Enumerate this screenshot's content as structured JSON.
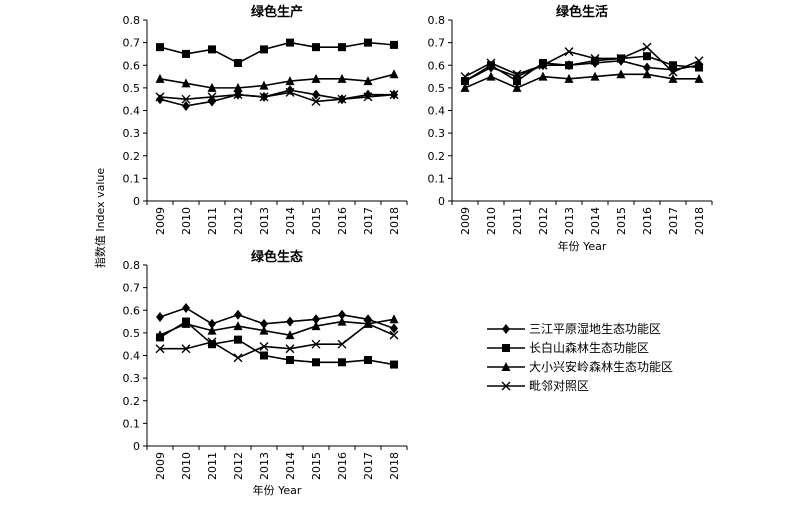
{
  "shared": {
    "ylabel": "指数值 Index value",
    "xlabel": "年份 Year"
  },
  "legend": [
    {
      "label": "三江平原湿地生态功能区",
      "marker": "diamond"
    },
    {
      "label": "长白山森林生态功能区",
      "marker": "square"
    },
    {
      "label": "大小兴安岭森林生态功能区",
      "marker": "triangle"
    },
    {
      "label": "毗邻对照区",
      "marker": "cross"
    }
  ],
  "chart_data": [
    {
      "type": "line",
      "title": "绿色生产",
      "xlabel": "",
      "categories": [
        "2009",
        "2010",
        "2011",
        "2012",
        "2013",
        "2014",
        "2015",
        "2016",
        "2017",
        "2018"
      ],
      "ylim": [
        0,
        0.8
      ],
      "yticks": [
        "0",
        "0.1",
        "0.2",
        "0.3",
        "0.4",
        "0.5",
        "0.6",
        "0.7",
        "0.8"
      ],
      "series": [
        {
          "name": "三江平原湿地生态功能区",
          "marker": "diamond",
          "values": [
            0.45,
            0.42,
            0.44,
            0.47,
            0.46,
            0.49,
            0.47,
            0.45,
            0.47,
            0.47
          ]
        },
        {
          "name": "长白山森林生态功能区",
          "marker": "square",
          "values": [
            0.68,
            0.65,
            0.67,
            0.61,
            0.67,
            0.7,
            0.68,
            0.68,
            0.7,
            0.69
          ]
        },
        {
          "name": "大小兴安岭森林生态功能区",
          "marker": "triangle",
          "values": [
            0.54,
            0.52,
            0.5,
            0.5,
            0.51,
            0.53,
            0.54,
            0.54,
            0.53,
            0.56
          ]
        },
        {
          "name": "毗邻对照区",
          "marker": "cross",
          "values": [
            0.46,
            0.45,
            0.46,
            0.47,
            0.46,
            0.48,
            0.44,
            0.45,
            0.46,
            0.47
          ]
        }
      ]
    },
    {
      "type": "line",
      "title": "绿色生活",
      "xlabel": "年份 Year",
      "categories": [
        "2009",
        "2010",
        "2011",
        "2012",
        "2013",
        "2014",
        "2015",
        "2016",
        "2017",
        "2018"
      ],
      "ylim": [
        0,
        0.8
      ],
      "yticks": [
        "0",
        "0.1",
        "0.2",
        "0.3",
        "0.4",
        "0.5",
        "0.6",
        "0.7",
        "0.8"
      ],
      "series": [
        {
          "name": "三江平原湿地生态功能区",
          "marker": "diamond",
          "values": [
            0.53,
            0.59,
            0.55,
            0.6,
            0.6,
            0.61,
            0.62,
            0.59,
            0.58,
            0.6
          ]
        },
        {
          "name": "长白山森林生态功能区",
          "marker": "square",
          "values": [
            0.53,
            0.6,
            0.53,
            0.61,
            0.6,
            0.62,
            0.63,
            0.64,
            0.6,
            0.59
          ]
        },
        {
          "name": "大小兴安岭森林生态功能区",
          "marker": "triangle",
          "values": [
            0.5,
            0.55,
            0.5,
            0.55,
            0.54,
            0.55,
            0.56,
            0.56,
            0.54,
            0.54
          ]
        },
        {
          "name": "毗邻对照区",
          "marker": "cross",
          "values": [
            0.55,
            0.61,
            0.56,
            0.6,
            0.66,
            0.63,
            0.63,
            0.68,
            0.57,
            0.62
          ]
        }
      ]
    },
    {
      "type": "line",
      "title": "绿色生态",
      "xlabel": "年份 Year",
      "categories": [
        "2009",
        "2010",
        "2011",
        "2012",
        "2013",
        "2014",
        "2015",
        "2016",
        "2017",
        "2018"
      ],
      "ylim": [
        0,
        0.8
      ],
      "yticks": [
        "0",
        "0.1",
        "0.2",
        "0.3",
        "0.4",
        "0.5",
        "0.6",
        "0.7",
        "0.8"
      ],
      "series": [
        {
          "name": "三江平原湿地生态功能区",
          "marker": "diamond",
          "values": [
            0.57,
            0.61,
            0.54,
            0.58,
            0.54,
            0.55,
            0.56,
            0.58,
            0.56,
            0.52
          ]
        },
        {
          "name": "长白山森林生态功能区",
          "marker": "square",
          "values": [
            0.48,
            0.55,
            0.45,
            0.47,
            0.4,
            0.38,
            0.37,
            0.37,
            0.38,
            0.36
          ]
        },
        {
          "name": "大小兴安岭森林生态功能区",
          "marker": "triangle",
          "values": [
            0.49,
            0.54,
            0.51,
            0.53,
            0.51,
            0.49,
            0.53,
            0.55,
            0.54,
            0.56
          ]
        },
        {
          "name": "毗邻对照区",
          "marker": "cross",
          "values": [
            0.43,
            0.43,
            0.46,
            0.39,
            0.44,
            0.43,
            0.45,
            0.45,
            0.54,
            0.49
          ]
        }
      ]
    }
  ]
}
